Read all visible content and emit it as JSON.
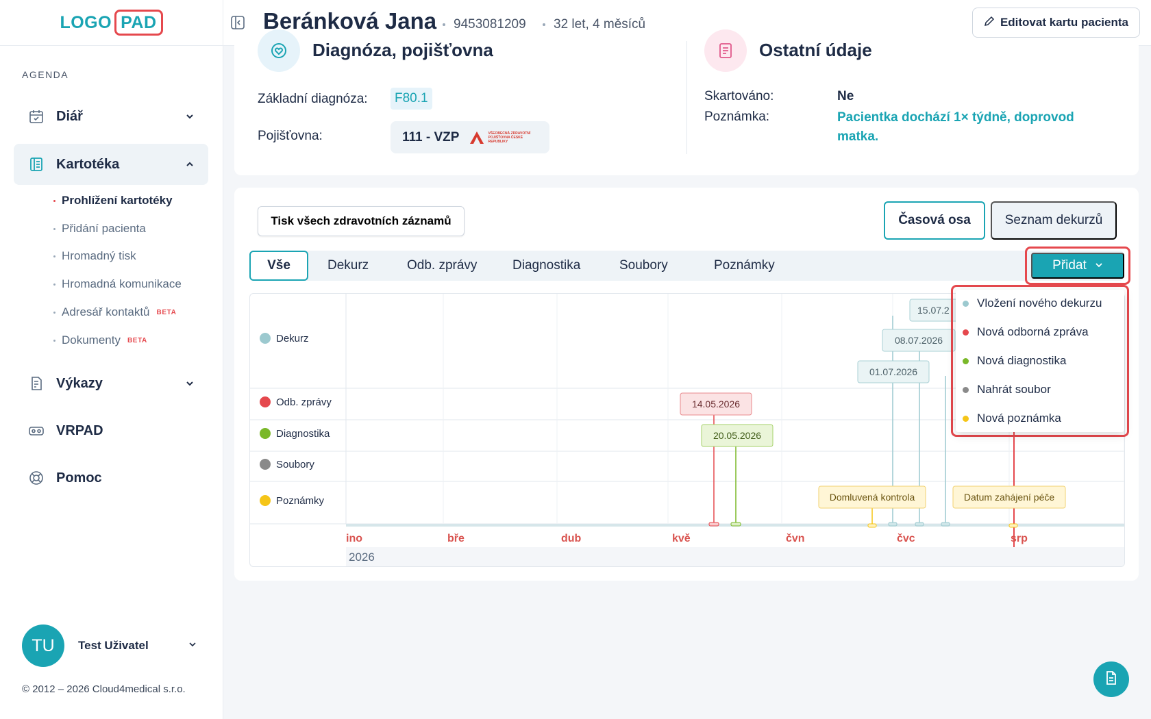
{
  "logo": {
    "part1": "LOGO",
    "part2": "PAD"
  },
  "sidebar": {
    "section_label": "AGENDA",
    "items": [
      {
        "label": "Diář"
      },
      {
        "label": "Kartotéka"
      },
      {
        "label": "Výkazy"
      },
      {
        "label": "VRPAD"
      },
      {
        "label": "Pomoc"
      }
    ],
    "subitems": [
      {
        "label": "Prohlížení kartotéky"
      },
      {
        "label": "Přidání pacienta"
      },
      {
        "label": "Hromadný tisk"
      },
      {
        "label": "Hromadná komunikace"
      },
      {
        "label": "Adresář kontaktů",
        "badge": "BETA"
      },
      {
        "label": "Dokumenty",
        "badge": "BETA"
      }
    ],
    "user": {
      "initials": "TU",
      "name": "Test Uživatel"
    },
    "copyright": "© 2012 – 2026 Cloud4medical s.r.o."
  },
  "header": {
    "patient_name": "Beránková Jana",
    "patient_id": "9453081209",
    "age": "32 let, 4 měsíců",
    "edit_button": "Editovat kartu pacienta"
  },
  "diagnosis_section": {
    "title": "Diagnóza, pojišťovna",
    "main_diag_label": "Základní diagnóza:",
    "main_diag_value": "F80.1",
    "insurance_label": "Pojišťovna:",
    "insurance_value": "111 - VZP",
    "insurance_logo_text": "VŠEOBECNÁ ZDRAVOTNÍ POJIŠŤOVNA ČESKÉ REPUBLIKY"
  },
  "other_section": {
    "title": "Ostatní údaje",
    "shredded_label": "Skartováno:",
    "shredded_value": "Ne",
    "note_label": "Poznámka:",
    "note_value": "Pacientka dochází 1× týdně, doprovod matka."
  },
  "timeline_card": {
    "print_button": "Tisk všech zdravotních záznamů",
    "view_timeline": "Časová osa",
    "view_list": "Seznam dekurzů",
    "filters": [
      "Vše",
      "Dekurz",
      "Odb. zprávy",
      "Diagnostika",
      "Soubory",
      "Poznámky"
    ],
    "add_button": "Přidat",
    "rows": [
      {
        "label": "Dekurz",
        "color": "#9cc9cf"
      },
      {
        "label": "Odb. zprávy",
        "color": "#e5484d"
      },
      {
        "label": "Diagnostika",
        "color": "#7ab829"
      },
      {
        "label": "Soubory",
        "color": "#8a8a8a"
      },
      {
        "label": "Poznámky",
        "color": "#f5c518"
      }
    ],
    "months": [
      "ino",
      "bře",
      "dub",
      "kvě",
      "čvn",
      "čvc",
      "srp"
    ],
    "year": "2026",
    "events": {
      "dekurz": [
        "15.07.2",
        "08.07.2026",
        "01.07.2026"
      ],
      "odb_zpravy": [
        "14.05.2026"
      ],
      "diagnostika": [
        "20.05.2026"
      ],
      "poznamky": [
        "Domluvená kontrola",
        "Datum zahájení péče"
      ]
    }
  },
  "dropdown": {
    "items": [
      {
        "label": "Vložení nového dekurzu",
        "color": "#9cc9cf"
      },
      {
        "label": "Nová odborná zpráva",
        "color": "#e5484d"
      },
      {
        "label": "Nová diagnostika",
        "color": "#7ab829"
      },
      {
        "label": "Nahrát soubor",
        "color": "#8a8a8a"
      },
      {
        "label": "Nová poznámka",
        "color": "#f5c518"
      }
    ]
  }
}
